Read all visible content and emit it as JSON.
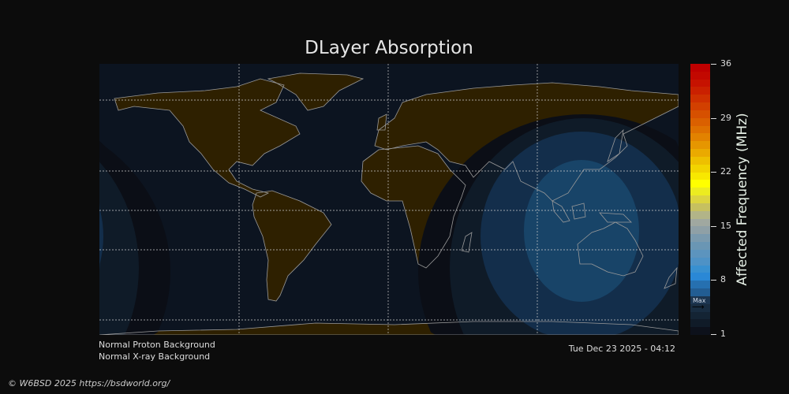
{
  "title": "DLayer Absorption",
  "colorbar": {
    "label": "Affected Frequency (MHz)",
    "min": 1,
    "max": 36,
    "ticks": [
      "36",
      "29",
      "22",
      "15",
      "8",
      "1"
    ],
    "max_marker_label": "Max",
    "max_marker_value": 4,
    "colors": [
      "#0d111b",
      "#101b28",
      "#142434",
      "#182c40",
      "#1c3550",
      "#225d93",
      "#2670b0",
      "#2a88d6",
      "#3890d0",
      "#4e92c6",
      "#5c94be",
      "#6a96b4",
      "#7a9aae",
      "#8fa0a6",
      "#a0a8a0",
      "#b2b488",
      "#c6c060",
      "#dcd440",
      "#ecec20",
      "#ffff00",
      "#f8e800",
      "#f2d400",
      "#eec000",
      "#eaaa00",
      "#e69600",
      "#e28200",
      "#de7000",
      "#da6000",
      "#d65000",
      "#d24000",
      "#ce3000",
      "#ca2000",
      "#c61200",
      "#c20800",
      "#be0000"
    ]
  },
  "map": {
    "ocean_color": "#0c1420",
    "land_color": "#2e2000",
    "coast_color": "#9a9a9a",
    "absorption_levels": [
      "#0b0e16",
      "#0f1b28",
      "#132e4b",
      "#184468"
    ]
  },
  "status": {
    "proton": "Normal Proton Background",
    "xray": "Normal X-ray Background"
  },
  "timestamp": "Tue Dec 23 2025 - 04:12",
  "footer": "© W6BSD 2025 https://bsdworld.org/"
}
